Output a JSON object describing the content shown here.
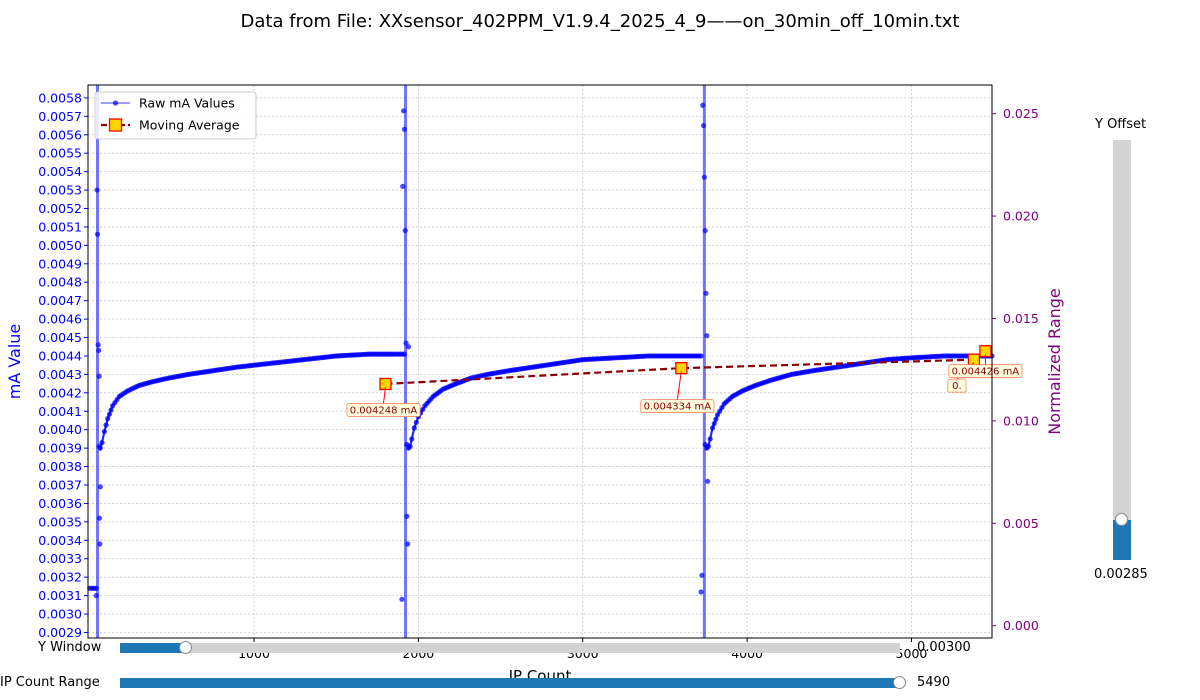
{
  "title": "Data from File: XXsensor_402PPM_V1.9.4_2025_4_9——on_30min_off_10min.txt",
  "chart_data": {
    "type": "line",
    "xlabel": "IP Count",
    "ylabel": "mA Value",
    "y2label": "Normalized Range",
    "xlim": [
      -10,
      5490
    ],
    "ylim": [
      0.00287,
      0.00587
    ],
    "y2lim": [
      -0.0006,
      0.0264
    ],
    "x_ticks": [
      1000,
      2000,
      3000,
      4000,
      5000
    ],
    "x_tick_labels": [
      "1000",
      "2000",
      "3000",
      "4000",
      "5000"
    ],
    "y_ticks": [
      0.0029,
      0.003,
      0.0031,
      0.0032,
      0.0033,
      0.0034,
      0.0035,
      0.0036,
      0.0037,
      0.0038,
      0.0039,
      0.004,
      0.0041,
      0.0042,
      0.0043,
      0.0044,
      0.0045,
      0.0046,
      0.0047,
      0.0048,
      0.0049,
      0.005,
      0.0051,
      0.0052,
      0.0053,
      0.0054,
      0.0055,
      0.0056,
      0.0057,
      0.0058
    ],
    "y_tick_labels": [
      "0.0029",
      "0.0030",
      "0.0031",
      "0.0032",
      "0.0033",
      "0.0034",
      "0.0035",
      "0.0036",
      "0.0037",
      "0.0038",
      "0.0039",
      "0.0040",
      "0.0041",
      "0.0042",
      "0.0043",
      "0.0044",
      "0.0045",
      "0.0046",
      "0.0047",
      "0.0048",
      "0.0049",
      "0.0050",
      "0.0051",
      "0.0052",
      "0.0053",
      "0.0054",
      "0.0055",
      "0.0056",
      "0.0057",
      "0.0058"
    ],
    "y2_ticks": [
      0.0,
      0.005,
      0.01,
      0.015,
      0.02,
      0.025
    ],
    "y2_tick_labels": [
      "0.000",
      "0.005",
      "0.010",
      "0.015",
      "0.020",
      "0.025"
    ],
    "grid": true,
    "legend_position": "top-left",
    "colors": {
      "raw": "#0000ff",
      "moving_avg": "#8b0000",
      "marker_face": "#ffd700",
      "marker_edge": "#ff0000",
      "y2": "#800080"
    },
    "series": [
      {
        "name": "Raw mA Values",
        "segments": [
          {
            "x": [
              0,
              40
            ],
            "y": [
              0.00314,
              0.00314
            ]
          },
          {
            "x": [
              58,
              65,
              75,
              90,
              110,
              140,
              180,
              230,
              300,
              380,
              480,
              600,
              750,
              900,
              1100,
              1300,
              1500,
              1700,
              1850,
              1915
            ],
            "y": [
              0.00391,
              0.0039,
              0.00393,
              0.00399,
              0.00406,
              0.00413,
              0.00418,
              0.00421,
              0.00424,
              0.00426,
              0.00428,
              0.0043,
              0.00432,
              0.00434,
              0.00436,
              0.00438,
              0.0044,
              0.00441,
              0.00441,
              0.00441
            ]
          },
          {
            "x": [
              1930,
              1940,
              1950,
              1960,
              1975,
              2000,
              2040,
              2090,
              2150,
              2230,
              2320,
              2420,
              2550,
              2700,
              2850,
              3000,
              3200,
              3400,
              3600,
              3720
            ],
            "y": [
              0.00392,
              0.0039,
              0.00391,
              0.00395,
              0.00401,
              0.00407,
              0.00413,
              0.00418,
              0.00422,
              0.00425,
              0.00428,
              0.0043,
              0.00432,
              0.00434,
              0.00436,
              0.00438,
              0.00439,
              0.0044,
              0.0044,
              0.0044
            ]
          },
          {
            "x": [
              3745,
              3755,
              3765,
              3775,
              3790,
              3820,
              3860,
              3910,
              3970,
              4050,
              4150,
              4270,
              4400,
              4550,
              4700,
              4850,
              5000,
              5200,
              5400,
              5490
            ],
            "y": [
              0.00392,
              0.0039,
              0.00391,
              0.00395,
              0.00401,
              0.00408,
              0.00414,
              0.00418,
              0.00421,
              0.00424,
              0.00427,
              0.0043,
              0.00432,
              0.00434,
              0.00436,
              0.00438,
              0.00439,
              0.0044,
              0.0044,
              0.0044
            ]
          }
        ],
        "spikes": [
          {
            "x": [
              40,
              45,
              48,
              52,
              55,
              58,
              60,
              62,
              65
            ],
            "y": [
              0.0031,
              0.0053,
              0.00506,
              0.00446,
              0.00443,
              0.00429,
              0.00352,
              0.00338,
              0.00369
            ]
          },
          {
            "x": [
              1900,
              1905,
              1910,
              1915,
              1920,
              1925,
              1930,
              1935,
              1940
            ],
            "y": [
              0.00308,
              0.00532,
              0.00573,
              0.00563,
              0.00508,
              0.00447,
              0.00353,
              0.00338,
              0.00445
            ]
          },
          {
            "x": [
              3720,
              3725,
              3730,
              3735,
              3740,
              3745,
              3750,
              3755,
              3760
            ],
            "y": [
              0.00312,
              0.00321,
              0.00576,
              0.00565,
              0.00537,
              0.00508,
              0.00474,
              0.00451,
              0.00372
            ]
          }
        ],
        "bands": [
          {
            "x": 48,
            "ymin": 0.00287,
            "ymax": 0.00587
          },
          {
            "x": 1922,
            "ymin": 0.00287,
            "ymax": 0.00587
          },
          {
            "x": 3740,
            "ymin": 0.00287,
            "ymax": 0.00587
          }
        ]
      },
      {
        "name": "Moving Average",
        "x": [
          1800,
          3600,
          5380,
          5450
        ],
        "y": [
          0.004248,
          0.004334,
          0.00438,
          0.004426
        ]
      }
    ],
    "annotations": [
      {
        "label": "0.004248 mA",
        "x": 1800,
        "y": 0.004248
      },
      {
        "label": "0.004334 mA",
        "x": 3600,
        "y": 0.004334
      },
      {
        "label": "0.",
        "x": 5380,
        "y": 0.00438
      },
      {
        "label": "0.004426 mA",
        "x": 5450,
        "y": 0.004426
      }
    ],
    "overflow_label": "0.00300"
  },
  "controls": {
    "y_offset": {
      "label": "Y Offset",
      "value": "0.00285",
      "fraction": 0.095
    },
    "y_window": {
      "label": "Y Window",
      "fraction": 0.085
    },
    "ip_count_range": {
      "label": "IP Count Range",
      "value": "5490",
      "fraction": 1.0
    }
  }
}
